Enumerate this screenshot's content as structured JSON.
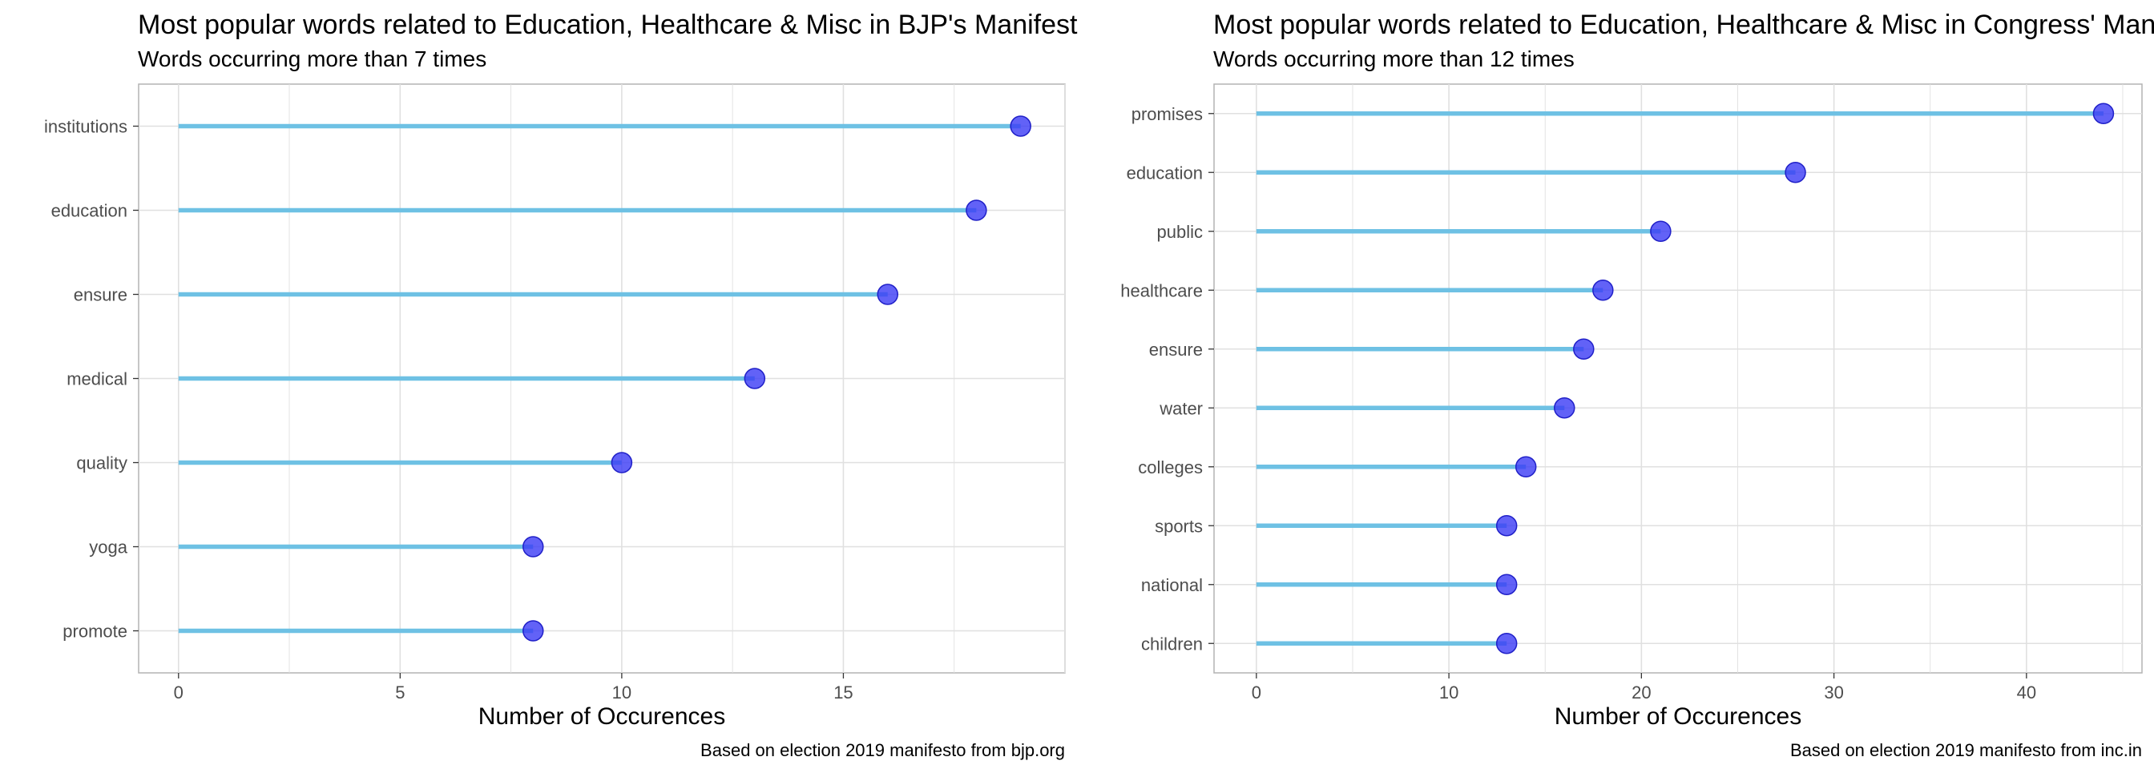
{
  "colors": {
    "stem": "#6EC1E4",
    "dot": "#3B3BF5",
    "dot_edge": "#2020C8",
    "grid": "#e0e0e0",
    "frame": "#b3b3b3"
  },
  "chart_data": [
    {
      "type": "lollipop",
      "title": "Most popular words related to Education, Healthcare & Misc in BJP's Manifesto",
      "subtitle": "Words occurring more than 7 times",
      "xlabel": "Number of Occurences",
      "caption": "Based on election 2019 manifesto from bjp.org",
      "xlim": [
        -0.9,
        20
      ],
      "xticks": [
        0,
        5,
        10,
        15
      ],
      "grid": true,
      "categories": [
        "institutions",
        "education",
        "ensure",
        "medical",
        "quality",
        "yoga",
        "promote"
      ],
      "values": [
        19,
        18,
        16,
        13,
        10,
        8,
        8
      ]
    },
    {
      "type": "lollipop",
      "title": "Most popular words related to Education, Healthcare & Misc in Congress' Manifesto",
      "subtitle": "Words occurring more than 12 times",
      "xlabel": "Number of Occurences",
      "caption": "Based on election 2019 manifesto from inc.in",
      "xlim": [
        -2.2,
        46
      ],
      "xticks": [
        0,
        10,
        20,
        30,
        40
      ],
      "grid": true,
      "categories": [
        "promises",
        "education",
        "public",
        "healthcare",
        "ensure",
        "water",
        "colleges",
        "sports",
        "national",
        "children"
      ],
      "values": [
        44,
        28,
        21,
        18,
        17,
        16,
        14,
        13,
        13,
        13
      ]
    }
  ]
}
